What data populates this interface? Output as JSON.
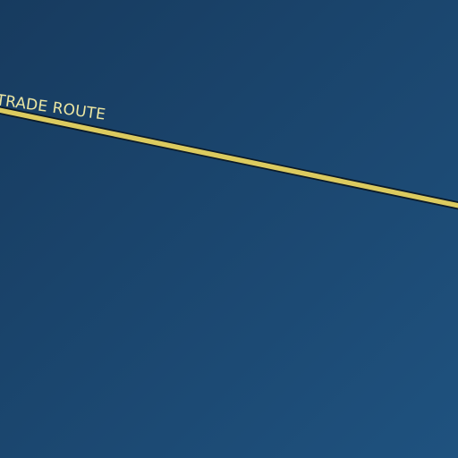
{
  "map": {
    "colors": {
      "water_dark": "#173b5f",
      "water_light": "#1f527f",
      "route_fill": "#dccb5f",
      "route_casing": "#0b1a29",
      "label_text": "#ece7a2",
      "label_halo": "#1a3f66"
    },
    "route": {
      "label": "TRADE ROUTE"
    }
  }
}
